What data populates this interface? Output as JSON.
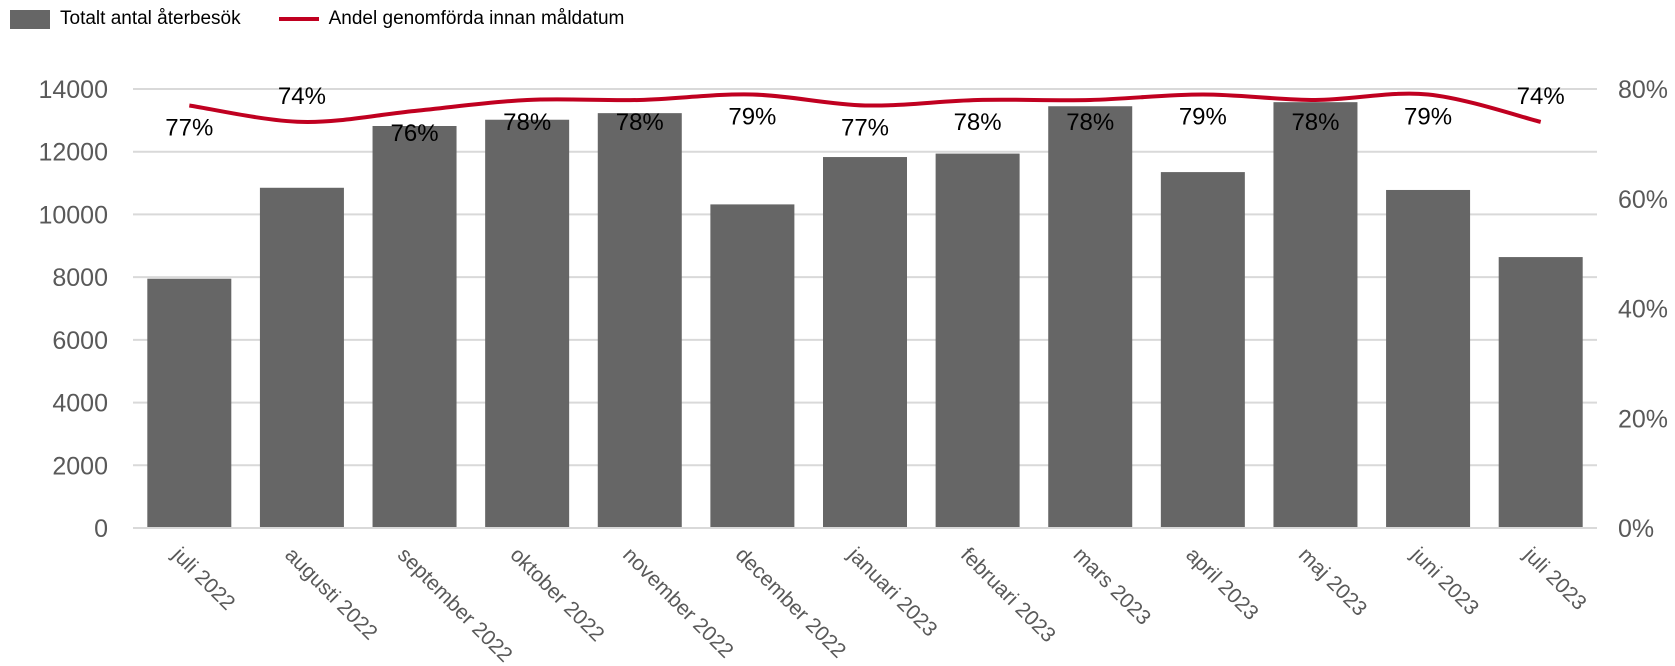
{
  "legend": {
    "bar_label": "Totalt antal återbesök",
    "line_label": "Andel genomförda innan måldatum"
  },
  "colors": {
    "bar": "#666666",
    "line": "#c00020",
    "grid": "#d9d9d9",
    "axis_text": "#595959"
  },
  "chart_data": {
    "type": "bar",
    "categories": [
      "juli 2022",
      "augusti 2022",
      "september 2022",
      "oktober 2022",
      "november 2022",
      "december 2022",
      "januari 2023",
      "februari 2023",
      "mars 2023",
      "april 2023",
      "maj 2023",
      "juni 2023",
      "juli 2023"
    ],
    "series": [
      {
        "name": "Totalt antal återbesök",
        "type": "bar",
        "axis": "left",
        "values": [
          7950,
          10850,
          12820,
          13020,
          13230,
          10320,
          11830,
          11940,
          13450,
          11350,
          13580,
          10780,
          8640
        ]
      },
      {
        "name": "Andel genomförda innan måldatum",
        "type": "line",
        "axis": "right",
        "values": [
          0.77,
          0.74,
          0.76,
          0.78,
          0.78,
          0.79,
          0.77,
          0.78,
          0.78,
          0.79,
          0.78,
          0.79,
          0.74
        ],
        "labels": [
          "77%",
          "74%",
          "76%",
          "78%",
          "78%",
          "79%",
          "77%",
          "78%",
          "78%",
          "79%",
          "78%",
          "79%",
          "74%"
        ]
      }
    ],
    "y_left": {
      "min": 0,
      "max": 14000,
      "ticks": [
        "0",
        "2000",
        "4000",
        "6000",
        "8000",
        "10000",
        "12000",
        "14000"
      ]
    },
    "y_right": {
      "min": 0,
      "max": 0.8,
      "ticks": [
        "0%",
        "20%",
        "40%",
        "60%",
        "80%"
      ]
    },
    "grid": true,
    "legend_position": "top-left"
  }
}
